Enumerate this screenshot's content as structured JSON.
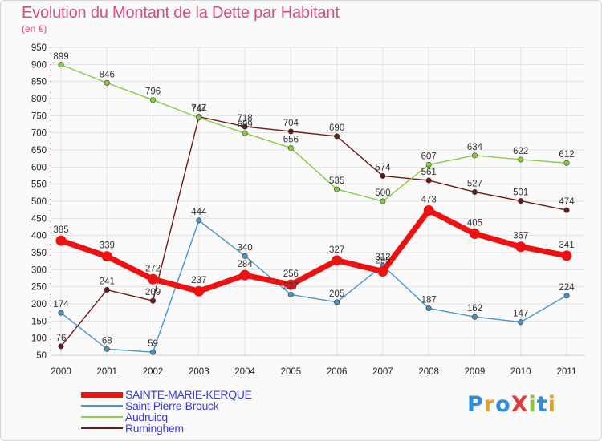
{
  "title": "Evolution du Montant de la Dette par Habitant",
  "subtitle": "(en €)",
  "logo": {
    "text": "ProXiti",
    "letter_colors": [
      "#2f8fd8",
      "#e8a020",
      "#2f8fd8",
      "#e03c3c",
      "#8cc63f",
      "#2f8fd8",
      "#e8a020"
    ]
  },
  "chart_data": {
    "type": "line",
    "x": [
      "2000",
      "2001",
      "2002",
      "2003",
      "2004",
      "2005",
      "2006",
      "2007",
      "2008",
      "2009",
      "2010",
      "2011"
    ],
    "yticks": [
      50,
      100,
      150,
      200,
      250,
      300,
      350,
      400,
      450,
      500,
      550,
      600,
      650,
      700,
      750,
      800,
      850,
      900,
      950
    ],
    "ylim": [
      50,
      950
    ],
    "grid": true,
    "legend_position": "bottom-left",
    "series": [
      {
        "name": "Ruminghem",
        "color": "#6b1a1a",
        "values": [
          76,
          241,
          209,
          747,
          718,
          704,
          690,
          574,
          561,
          527,
          501,
          474
        ],
        "labels": [
          "76",
          "241",
          "209",
          "747",
          "718",
          "704",
          "690",
          "574",
          "561",
          "527",
          "501",
          "474"
        ]
      },
      {
        "name": "Audruicq",
        "color": "#88cc44",
        "values": [
          899,
          846,
          796,
          744,
          699,
          656,
          535,
          500,
          607,
          634,
          622,
          612
        ],
        "labels": [
          "899",
          "846",
          "796",
          "744",
          "699",
          "656",
          "535",
          "500",
          "607",
          "634",
          "622",
          "612"
        ]
      },
      {
        "name": "Saint-Pierre-Brouck",
        "color": "#4a94cc",
        "values": [
          174,
          68,
          59,
          444,
          340,
          227,
          205,
          312,
          187,
          162,
          147,
          224
        ],
        "labels": [
          "174",
          "68",
          "59",
          "444",
          "340",
          "227",
          "205",
          "312",
          "187",
          "162",
          "147",
          "224"
        ]
      },
      {
        "name": "SAINTE-MARIE-KERQUE",
        "color": "#ee1111",
        "values": [
          385,
          339,
          272,
          237,
          284,
          256,
          327,
          295,
          473,
          405,
          367,
          341
        ],
        "labels": [
          "385",
          "339",
          "272",
          "237",
          "284",
          "256",
          "327",
          "295",
          "473",
          "405",
          "367",
          "341"
        ]
      }
    ],
    "legend": [
      "SAINTE-MARIE-KERQUE",
      "Saint-Pierre-Brouck",
      "Audruicq",
      "Ruminghem"
    ]
  }
}
